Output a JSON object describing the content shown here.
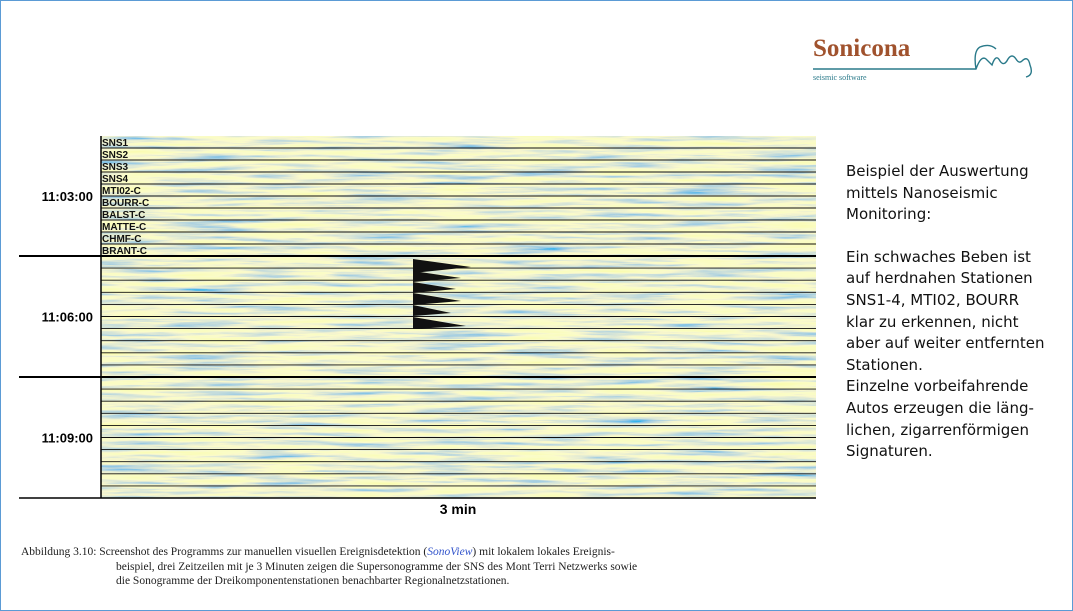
{
  "logo": {
    "name": "Sonicona",
    "tagline": "seismic software"
  },
  "figure": {
    "stations": [
      "SNS1",
      "SNS2",
      "SNS3",
      "SNS4",
      "MTI02-C",
      "BOURR-C",
      "BALST-C",
      "MATTE-C",
      "CHMF-C",
      "BRANT-C"
    ],
    "times": [
      "11:03:00",
      "11:06:00",
      "11:09:00"
    ],
    "x_label": "3 min"
  },
  "side_text": [
    [
      "Beispiel der Auswertung",
      "mittels Nanoseismic",
      "Monitoring:"
    ],
    [
      "Ein schwaches Beben ist",
      "auf herdnahen Stationen",
      "SNS1-4, MTI02, BOURR",
      "klar zu erkennen, nicht",
      "aber auf weiter entfernten",
      "Stationen."
    ],
    [
      "Einzelne vorbeifahrende",
      "Autos erzeugen die läng-",
      "lichen, zigarrenförmigen",
      "Signaturen."
    ]
  ],
  "caption": {
    "line1_before": "Abbildung 3.10: Screenshot des Programms zur manuellen visuellen Ereignisdetektion (",
    "line1_link": "SonoView",
    "line1_after": ") mit lokalem lokales Ereignis-",
    "line2": "beispiel, drei Zeitzeilen mit je 3 Minuten zeigen die Supersonogramme der SNS des Mont Terri Netzwerks sowie",
    "line3": "die Sonogramme der Dreikomponentenstationen benachbarter Regionalnetzstationen."
  }
}
